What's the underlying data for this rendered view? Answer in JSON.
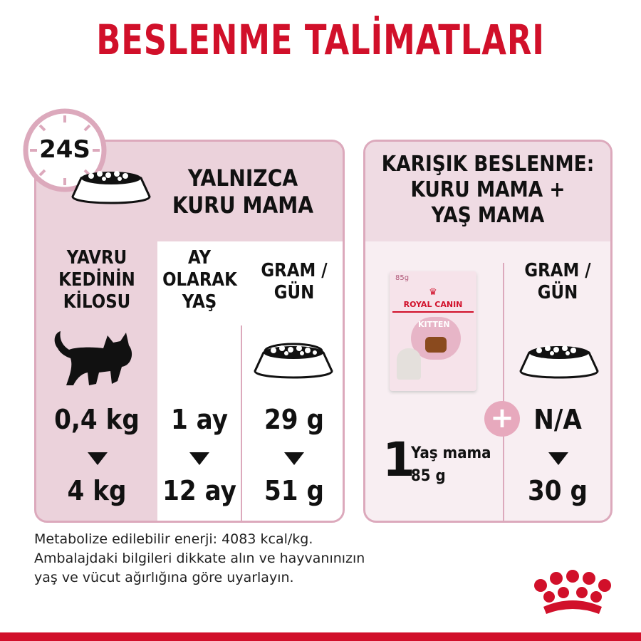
{
  "title": "BESLENME TALİMATLARI",
  "colors": {
    "brand_red": "#d1102a",
    "panel_pink": "#ebd2db",
    "border_pink": "#dca9bc"
  },
  "clock_badge": "24S",
  "dry": {
    "heading_line1": "YALNIZCA",
    "heading_line2": "KURU MAMA",
    "col_weight": [
      "YAVRU",
      "KEDİNİN",
      "KİLOSU"
    ],
    "col_age": [
      "AY",
      "OLARAK",
      "YAŞ"
    ],
    "col_gram": [
      "GRAM /",
      "GÜN"
    ],
    "weight_from": "0,4 kg",
    "weight_to": "4 kg",
    "age_from": "1 ay",
    "age_to": "12 ay",
    "gram_from": "29 g",
    "gram_to": "51 g"
  },
  "mixed": {
    "heading": [
      "KARIŞIK BESLENME:",
      "KURU MAMA +",
      "YAŞ MAMA"
    ],
    "pouch": {
      "weight": "85g",
      "brand": "ROYAL CANIN",
      "product": "KITTEN"
    },
    "col_gram": [
      "GRAM /",
      "GÜN"
    ],
    "wet_count": "1",
    "wet_label": "Yaş mama",
    "wet_weight": "85 g",
    "gram_from": "N/A",
    "gram_to": "30 g"
  },
  "note": [
    "Metabolize edilebilir enerji: 4083 kcal/kg.",
    "Ambalajdaki bilgileri dikkate alın ve hayvanınızın",
    "yaş ve vücut ağırlığına göre uyarlayın."
  ],
  "icons": [
    "clock-icon",
    "food-bowl-icon",
    "kitten-silhouette-icon",
    "arrow-down-icon",
    "plus-icon",
    "royal-canin-crown-logo"
  ]
}
